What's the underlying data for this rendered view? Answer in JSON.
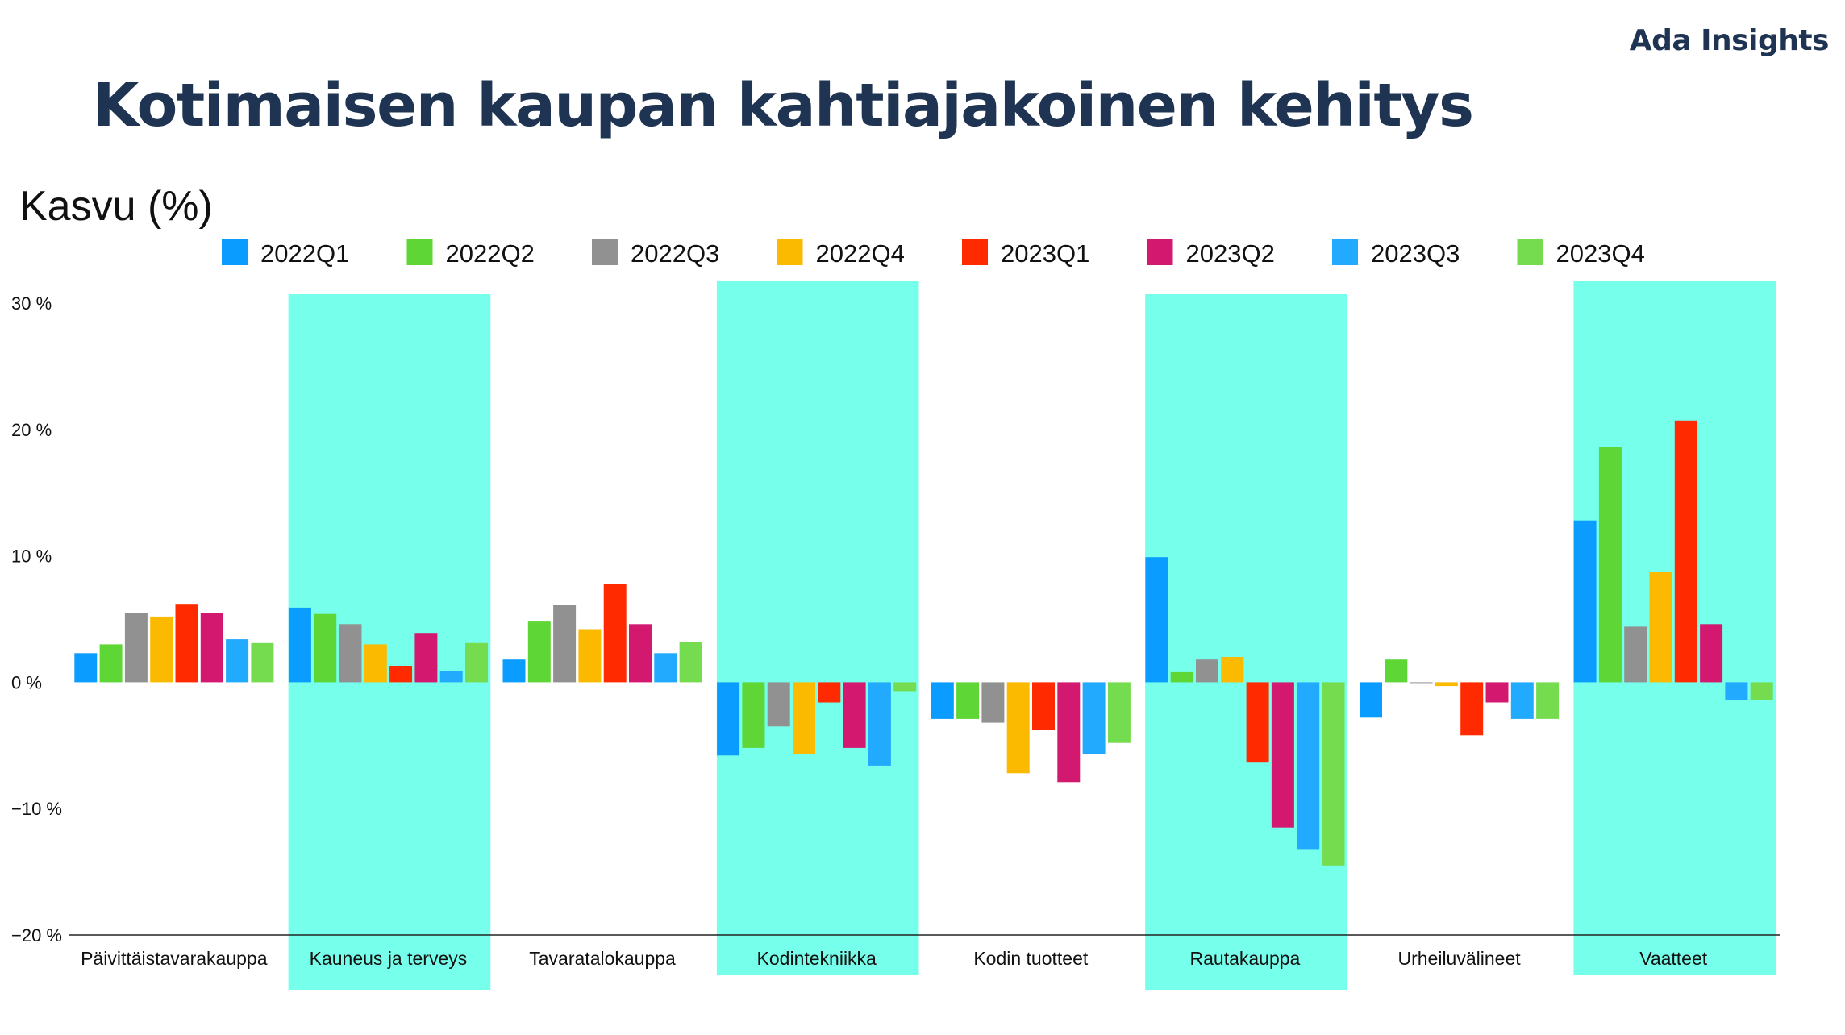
{
  "brand": "Ada Insights",
  "chart_data": {
    "type": "bar",
    "title": "Kotimaisen kaupan kahtiajakoinen kehitys",
    "ylabel": "Kasvu (%)",
    "xlabel": "",
    "ylim": [
      -20,
      30
    ],
    "yticks": [
      30,
      20,
      10,
      0,
      -10,
      -20
    ],
    "ytick_labels": [
      "30 %",
      "20 %",
      "10 %",
      "0 %",
      "−10 %",
      "−20 %"
    ],
    "legend_position": "top",
    "categories": [
      "Päivittäistavarakauppa",
      "Kauneus ja terveys",
      "Tavaratalokauppa",
      "Kodintekniikka",
      "Kodin tuotteet",
      "Rautakauppa",
      "Urheiluvälineet",
      "Vaatteet"
    ],
    "highlighted_categories": [
      1,
      3,
      5,
      7
    ],
    "highlight_color": "#76ffea",
    "series": [
      {
        "name": "2022Q1",
        "color": "#0a9cff",
        "values": [
          2.3,
          5.9,
          1.8,
          -5.8,
          -2.9,
          9.9,
          -2.8,
          12.8
        ]
      },
      {
        "name": "2022Q2",
        "color": "#5ed636",
        "values": [
          3.0,
          5.4,
          4.8,
          -5.2,
          -2.9,
          0.8,
          1.8,
          18.6
        ]
      },
      {
        "name": "2022Q3",
        "color": "#919191",
        "values": [
          5.5,
          4.6,
          6.1,
          -3.5,
          -3.2,
          1.8,
          0.0,
          4.4
        ]
      },
      {
        "name": "2022Q4",
        "color": "#fbb900",
        "values": [
          5.2,
          3.0,
          4.2,
          -5.7,
          -7.2,
          2.0,
          -0.3,
          8.7
        ]
      },
      {
        "name": "2023Q1",
        "color": "#ff2a00",
        "values": [
          6.2,
          1.3,
          7.8,
          -1.6,
          -3.8,
          -6.3,
          -4.2,
          20.7
        ]
      },
      {
        "name": "2023Q2",
        "color": "#d3196f",
        "values": [
          5.5,
          3.9,
          4.6,
          -5.2,
          -7.9,
          -11.5,
          -1.6,
          4.6
        ]
      },
      {
        "name": "2023Q3",
        "color": "#22aaff",
        "values": [
          3.4,
          0.9,
          2.3,
          -6.6,
          -5.7,
          -13.2,
          -2.9,
          -1.4
        ]
      },
      {
        "name": "2023Q4",
        "color": "#74dc4e",
        "values": [
          3.1,
          3.1,
          3.2,
          -0.7,
          -4.8,
          -14.5,
          -2.9,
          -1.4
        ]
      }
    ]
  }
}
